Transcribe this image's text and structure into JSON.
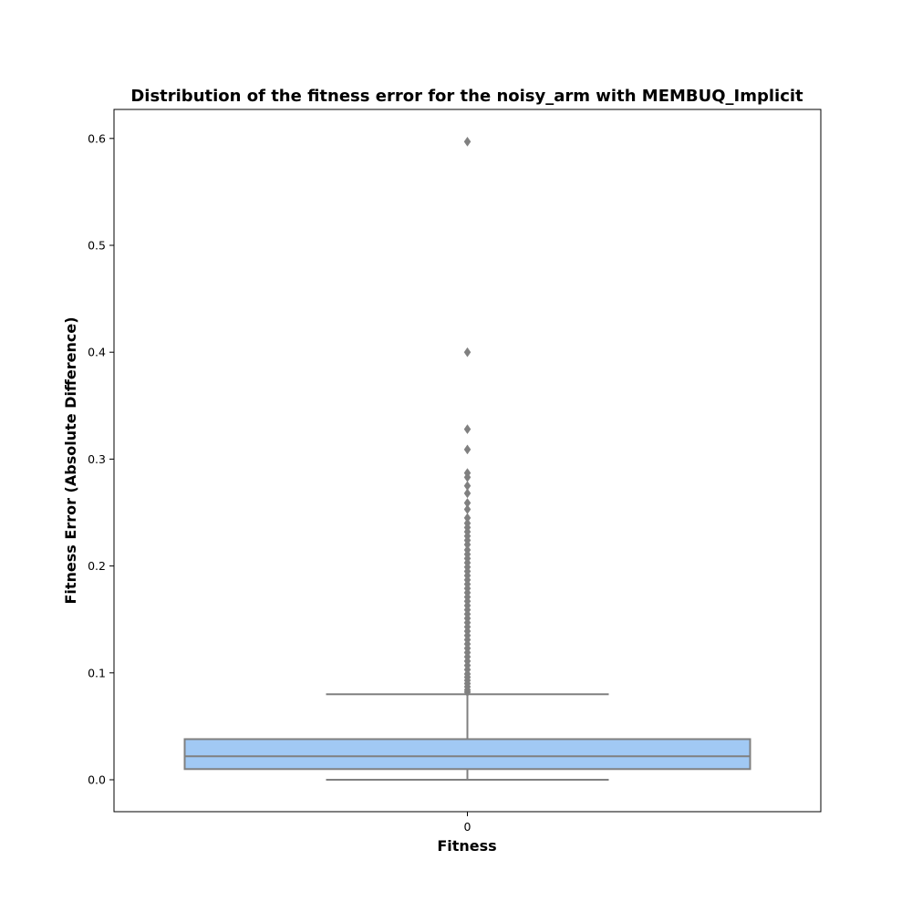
{
  "chart_data": {
    "type": "box",
    "title": "Distribution of the fitness error for the noisy_arm with MEMBUQ_Implicit",
    "xlabel": "Fitness",
    "ylabel": "Fitness Error (Absolute Difference)",
    "categories": [
      "0"
    ],
    "ylim": [
      -0.03,
      0.625
    ],
    "yticks": [
      0.0,
      0.1,
      0.2,
      0.3,
      0.4,
      0.5,
      0.6
    ],
    "ytick_labels": [
      "0.0",
      "0.1",
      "0.2",
      "0.3",
      "0.4",
      "0.5",
      "0.6"
    ],
    "grid": false,
    "box": {
      "category": "0",
      "min": 0.0,
      "q1": 0.01,
      "median": 0.022,
      "q3": 0.038,
      "whisker_high": 0.08,
      "color": "#a1c9f4",
      "edge_color": "#808080"
    },
    "outliers": [
      0.597,
      0.4,
      0.328,
      0.309,
      0.287,
      0.283,
      0.275,
      0.268,
      0.259,
      0.253,
      0.245,
      0.24,
      0.236,
      0.232,
      0.228,
      0.224,
      0.22,
      0.215,
      0.211,
      0.207,
      0.203,
      0.199,
      0.195,
      0.191,
      0.187,
      0.183,
      0.179,
      0.175,
      0.171,
      0.167,
      0.163,
      0.159,
      0.155,
      0.151,
      0.147,
      0.143,
      0.139,
      0.135,
      0.131,
      0.127,
      0.123,
      0.119,
      0.115,
      0.111,
      0.107,
      0.103,
      0.099,
      0.096,
      0.093,
      0.09,
      0.087,
      0.084,
      0.082
    ]
  }
}
